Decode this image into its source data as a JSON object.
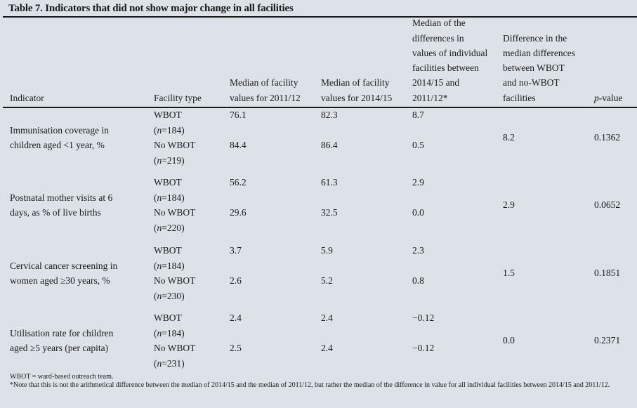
{
  "title": "Table 7. Indicators that did not show major change in all facilities",
  "headers": {
    "indicator": "Indicator",
    "facility_type": "Facility type",
    "median_2011": [
      "Median of facility",
      "values for 2011/12"
    ],
    "median_2014": [
      "Median of facility",
      "values for 2014/15"
    ],
    "median_diff": [
      "Median of the",
      "differences in",
      "values of individual",
      "facilities between",
      "2014/15 and",
      "2011/12*"
    ],
    "diff_of_diff": [
      "Difference in the",
      "median differences",
      "between WBOT",
      "and no-WBOT",
      "facilities"
    ],
    "p_value_italic": "p",
    "p_value_rest": "-value"
  },
  "rows": [
    {
      "indicator": [
        "Immunisation coverage in",
        "children aged <1 year, %"
      ],
      "wbot": {
        "type": "WBOT",
        "n": "184",
        "m2011": "76.1",
        "m2014": "82.3",
        "diff": "8.7"
      },
      "nowbot": {
        "type": "No WBOT",
        "n": "219",
        "m2011": "84.4",
        "m2014": "86.4",
        "diff": "0.5"
      },
      "diff_of_diff": "8.2",
      "p": "0.1362"
    },
    {
      "indicator": [
        "Postnatal mother visits at 6",
        "days, as % of live births"
      ],
      "wbot": {
        "type": "WBOT",
        "n": "184",
        "m2011": "56.2",
        "m2014": "61.3",
        "diff": "2.9"
      },
      "nowbot": {
        "type": "No WBOT",
        "n": "220",
        "m2011": "29.6",
        "m2014": "32.5",
        "diff": "0.0"
      },
      "diff_of_diff": "2.9",
      "p": "0.0652"
    },
    {
      "indicator": [
        "Cervical cancer screening in",
        "women aged ≥30 years, %"
      ],
      "wbot": {
        "type": "WBOT",
        "n": "184",
        "m2011": "3.7",
        "m2014": "5.9",
        "diff": "2.3"
      },
      "nowbot": {
        "type": "No WBOT",
        "n": "230",
        "m2011": "2.6",
        "m2014": "5.2",
        "diff": "0.8"
      },
      "diff_of_diff": "1.5",
      "p": "0.1851"
    },
    {
      "indicator": [
        "Utilisation rate for children",
        "aged ≥5 years (per capita)"
      ],
      "wbot": {
        "type": "WBOT",
        "n": "184",
        "m2011": "2.4",
        "m2014": "2.4",
        "diff": "−0.12"
      },
      "nowbot": {
        "type": "No WBOT",
        "n": "231",
        "m2011": "2.5",
        "m2014": "2.4",
        "diff": "−0.12"
      },
      "diff_of_diff": "0.0",
      "p": "0.2371"
    }
  ],
  "n_prefix_italic": "n",
  "notes": [
    "WBOT = ward-based outreach team.",
    "*Note that this is not the arithmetical difference between the median of 2014/15 and the median of 2011/12, but rather the median of the difference in value for all individual facilities between 2014/15 and 2011/12."
  ]
}
